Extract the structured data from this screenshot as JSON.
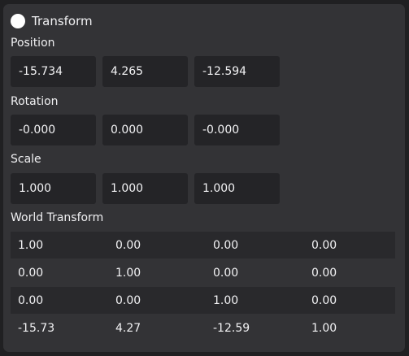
{
  "component": {
    "title": "Transform"
  },
  "position": {
    "label": "Position",
    "values": [
      "-15.734",
      "4.265",
      "-12.594"
    ]
  },
  "rotation": {
    "label": "Rotation",
    "values": [
      "-0.000",
      "0.000",
      "-0.000"
    ]
  },
  "scale": {
    "label": "Scale",
    "values": [
      "1.000",
      "1.000",
      "1.000"
    ]
  },
  "world_transform": {
    "label": "World Transform",
    "rows": [
      [
        "1.00",
        "0.00",
        "0.00",
        "0.00"
      ],
      [
        "0.00",
        "1.00",
        "0.00",
        "0.00"
      ],
      [
        "0.00",
        "0.00",
        "1.00",
        "0.00"
      ],
      [
        "-15.73",
        "4.27",
        "-12.59",
        "1.00"
      ]
    ]
  }
}
